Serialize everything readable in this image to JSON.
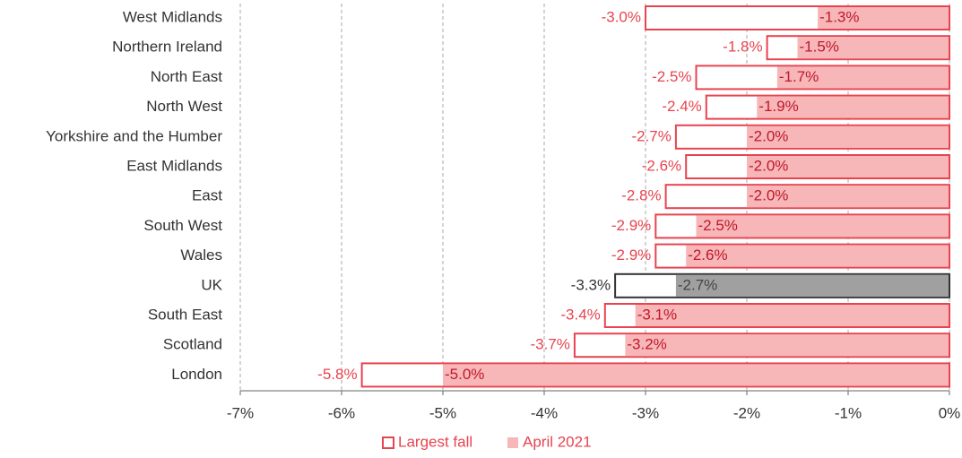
{
  "chart_data": {
    "type": "bar",
    "orientation": "horizontal",
    "categories": [
      "West Midlands",
      "Northern Ireland",
      "North East",
      "North West",
      "Yorkshire and the Humber",
      "East Midlands",
      "East",
      "South West",
      "Wales",
      "UK",
      "South East",
      "Scotland",
      "London"
    ],
    "series": [
      {
        "name": "Largest fall",
        "style": "outline",
        "color": "#e8434f",
        "values": [
          -3.0,
          -1.8,
          -2.5,
          -2.4,
          -2.7,
          -2.6,
          -2.8,
          -2.9,
          -2.9,
          -3.3,
          -3.4,
          -3.7,
          -5.8
        ],
        "value_labels": [
          "-3.0%",
          "-1.8%",
          "-2.5%",
          "-2.4%",
          "-2.7%",
          "-2.6%",
          "-2.8%",
          "-2.9%",
          "-2.9%",
          "-3.3%",
          "-3.4%",
          "-3.7%",
          "-5.8%"
        ],
        "colors": [
          "#e8434f",
          "#e8434f",
          "#e8434f",
          "#e8434f",
          "#e8434f",
          "#e8434f",
          "#e8434f",
          "#e8434f",
          "#e8434f",
          "#333333",
          "#e8434f",
          "#e8434f",
          "#e8434f"
        ]
      },
      {
        "name": "April 2021",
        "style": "fill",
        "color": "#f7b6b8",
        "values": [
          -1.3,
          -1.5,
          -1.7,
          -1.9,
          -2.0,
          -2.0,
          -2.0,
          -2.5,
          -2.6,
          -2.7,
          -3.1,
          -3.2,
          -5.0
        ],
        "value_labels": [
          "-1.3%",
          "-1.5%",
          "-1.7%",
          "-1.9%",
          "-2.0%",
          "-2.0%",
          "-2.0%",
          "-2.5%",
          "-2.6%",
          "-2.7%",
          "-3.1%",
          "-3.2%",
          "-5.0%"
        ],
        "colors": [
          "#f7b6b8",
          "#f7b6b8",
          "#f7b6b8",
          "#f7b6b8",
          "#f7b6b8",
          "#f7b6b8",
          "#f7b6b8",
          "#f7b6b8",
          "#f7b6b8",
          "#a0a0a0",
          "#f7b6b8",
          "#f7b6b8",
          "#f7b6b8"
        ],
        "label_colors": [
          "#c0182a",
          "#c0182a",
          "#c0182a",
          "#c0182a",
          "#c0182a",
          "#c0182a",
          "#c0182a",
          "#c0182a",
          "#c0182a",
          "#444444",
          "#c0182a",
          "#c0182a",
          "#c0182a"
        ]
      }
    ],
    "xlim": [
      -7,
      0
    ],
    "xticks": [
      {
        "value": -7,
        "label": "-7%"
      },
      {
        "value": -6,
        "label": "-6%"
      },
      {
        "value": -5,
        "label": "-5%"
      },
      {
        "value": -4,
        "label": "-4%"
      },
      {
        "value": -3,
        "label": "-3%"
      },
      {
        "value": -2,
        "label": "-2%"
      },
      {
        "value": -1,
        "label": "-1%"
      },
      {
        "value": 0,
        "label": "0%"
      }
    ],
    "grid": true,
    "legend": "bottom"
  }
}
